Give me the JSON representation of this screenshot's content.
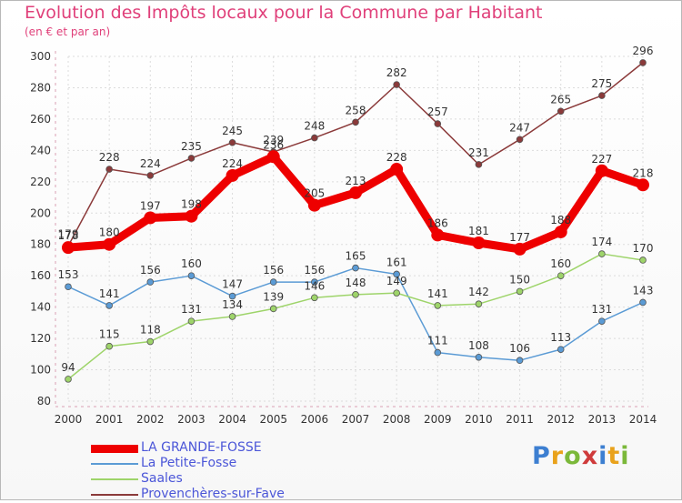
{
  "title": "Evolution des Impôts locaux pour la Commune par Habitant",
  "subtitle": "(en € et par an)",
  "logo_letters": [
    {
      "ch": "P",
      "color": "#3d7fd1"
    },
    {
      "ch": "r",
      "color": "#e9a21b"
    },
    {
      "ch": "o",
      "color": "#7bb83a"
    },
    {
      "ch": "x",
      "color": "#cf3b3b"
    },
    {
      "ch": "i",
      "color": "#3d7fd1"
    },
    {
      "ch": "t",
      "color": "#e9a21b"
    },
    {
      "ch": "i",
      "color": "#7bb83a"
    }
  ],
  "chart_data": {
    "type": "line",
    "x": [
      "2000",
      "2001",
      "2002",
      "2003",
      "2004",
      "2005",
      "2006",
      "2007",
      "2008",
      "2009",
      "2010",
      "2011",
      "2012",
      "2013",
      "2014"
    ],
    "ylim": [
      80,
      300
    ],
    "yticks": [
      80,
      100,
      120,
      140,
      160,
      180,
      200,
      220,
      240,
      260,
      280,
      300
    ],
    "grid": true,
    "legend_position": "bottom-left",
    "series": [
      {
        "name": "LA GRANDE-FOSSE",
        "color": "#ee0000",
        "values": [
          178,
          180,
          197,
          198,
          224,
          236,
          205,
          213,
          228,
          186,
          181,
          177,
          188,
          227,
          218
        ],
        "labels": [
          "178",
          "180",
          "197",
          "198",
          "224",
          "236",
          "205",
          "213",
          "228",
          "186",
          "181",
          "177",
          "188",
          "227",
          "218"
        ],
        "emphasis": true
      },
      {
        "name": "La Petite-Fosse",
        "color": "#5b9bd5",
        "values": [
          153,
          141,
          156,
          160,
          147,
          156,
          156,
          165,
          161,
          111,
          108,
          106,
          113,
          131,
          143
        ],
        "labels": [
          "153",
          "141",
          "156",
          "160",
          "147",
          "156",
          "156",
          "165",
          "161",
          "111",
          "108",
          "106",
          "113",
          "131",
          "143"
        ],
        "emphasis": false
      },
      {
        "name": "Saales",
        "color": "#9ed46a",
        "values": [
          94,
          115,
          118,
          131,
          134,
          139,
          146,
          148,
          149,
          141,
          142,
          150,
          160,
          174,
          170
        ],
        "labels": [
          "94",
          "115",
          "118",
          "131",
          "134",
          "139",
          "146",
          "148",
          "149",
          "141",
          "142",
          "150",
          "160",
          "174",
          "170"
        ],
        "emphasis": false
      },
      {
        "name": "Provenchères-sur-Fave",
        "color": "#8b3a3a",
        "values": [
          179,
          228,
          224,
          235,
          245,
          239,
          248,
          258,
          282,
          257,
          231,
          247,
          265,
          275,
          296
        ],
        "labels": [
          "179",
          "228",
          "224",
          "235",
          "245",
          "239",
          "248",
          "258",
          "282",
          "257",
          "231",
          "247",
          "265",
          "275",
          "296"
        ],
        "emphasis": false
      }
    ]
  }
}
